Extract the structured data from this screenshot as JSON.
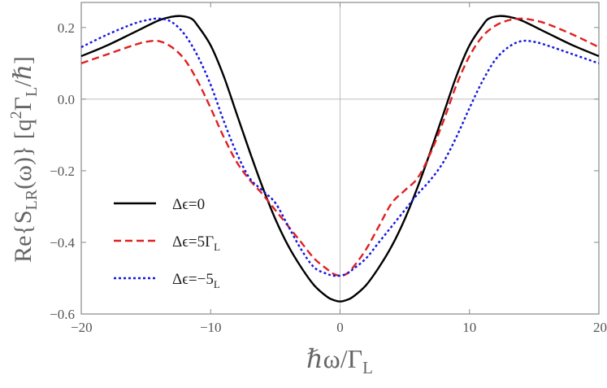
{
  "chart_data": {
    "type": "line",
    "title": "",
    "xlabel": "ℏω/Γ_L",
    "ylabel": "Re{S_LR(ω)} [q²Γ_L/ℏ]",
    "xlim": [
      -20,
      20
    ],
    "ylim": [
      -0.6,
      0.27
    ],
    "xticks": [
      -20,
      -10,
      0,
      10,
      20
    ],
    "yticks": [
      0.2,
      0.0,
      -0.2,
      -0.4,
      -0.6
    ],
    "xtick_labels": [
      "−20",
      "−10",
      "0",
      "10",
      "20"
    ],
    "ytick_labels": [
      "0.2",
      "0.0",
      "−0.2",
      "−0.4",
      "−0.6"
    ],
    "grid": false,
    "zero_lines": true,
    "legend_position": "lower-left",
    "series": [
      {
        "name": "Δϵ=0",
        "color": "#000000",
        "style": "solid",
        "x": [
          -20,
          -18,
          -16,
          -14,
          -13,
          -12.3,
          -11.5,
          -11,
          -10,
          -9,
          -8,
          -7,
          -6,
          -5,
          -4,
          -3,
          -2,
          -1,
          -0.5,
          0,
          0.5,
          1,
          2,
          3,
          4,
          5,
          6,
          7,
          8,
          9,
          10,
          11,
          11.5,
          12.3,
          13,
          14,
          16,
          18,
          20
        ],
        "y": [
          0.12,
          0.15,
          0.185,
          0.22,
          0.23,
          0.232,
          0.225,
          0.205,
          0.15,
          0.065,
          -0.04,
          -0.145,
          -0.245,
          -0.335,
          -0.41,
          -0.47,
          -0.52,
          -0.552,
          -0.561,
          -0.565,
          -0.561,
          -0.552,
          -0.52,
          -0.47,
          -0.41,
          -0.335,
          -0.245,
          -0.145,
          -0.04,
          0.065,
          0.15,
          0.205,
          0.225,
          0.232,
          0.23,
          0.22,
          0.185,
          0.15,
          0.12
        ]
      },
      {
        "name": "Δϵ=5Γ_L",
        "color": "#e02020",
        "style": "dashed",
        "x": [
          -20,
          -18,
          -16,
          -15,
          -14,
          -13,
          -12,
          -11,
          -10,
          -9,
          -8,
          -7,
          -6,
          -5,
          -4,
          -3,
          -2,
          -1,
          -0.5,
          0,
          0.5,
          1,
          2,
          3,
          4,
          5,
          6,
          7,
          8,
          9,
          10,
          11,
          12,
          13,
          14,
          15,
          16,
          18,
          20
        ],
        "y": [
          0.1,
          0.125,
          0.15,
          0.16,
          0.162,
          0.145,
          0.11,
          0.05,
          -0.025,
          -0.105,
          -0.175,
          -0.225,
          -0.265,
          -0.31,
          -0.355,
          -0.4,
          -0.445,
          -0.475,
          -0.488,
          -0.493,
          -0.488,
          -0.47,
          -0.42,
          -0.355,
          -0.29,
          -0.255,
          -0.22,
          -0.15,
          -0.06,
          0.04,
          0.12,
          0.175,
          0.205,
          0.22,
          0.225,
          0.22,
          0.21,
          0.18,
          0.145
        ]
      },
      {
        "name": "Δϵ=−5_L",
        "color": "#1515e0",
        "style": "dotted",
        "x": [
          -20,
          -18,
          -16,
          -15,
          -14,
          -13,
          -12,
          -11,
          -10,
          -9,
          -8,
          -7,
          -6,
          -5,
          -4,
          -3,
          -2,
          -1,
          -0.5,
          0,
          0.5,
          1,
          2,
          3,
          4,
          5,
          6,
          7,
          8,
          9,
          10,
          11,
          12,
          13,
          14,
          15,
          16,
          18,
          20
        ],
        "y": [
          0.145,
          0.18,
          0.21,
          0.22,
          0.225,
          0.215,
          0.18,
          0.12,
          0.04,
          -0.06,
          -0.15,
          -0.22,
          -0.255,
          -0.29,
          -0.355,
          -0.42,
          -0.47,
          -0.488,
          -0.493,
          -0.493,
          -0.488,
          -0.475,
          -0.445,
          -0.4,
          -0.355,
          -0.31,
          -0.265,
          -0.225,
          -0.175,
          -0.105,
          -0.025,
          0.05,
          0.11,
          0.145,
          0.162,
          0.16,
          0.15,
          0.125,
          0.1
        ]
      }
    ]
  }
}
